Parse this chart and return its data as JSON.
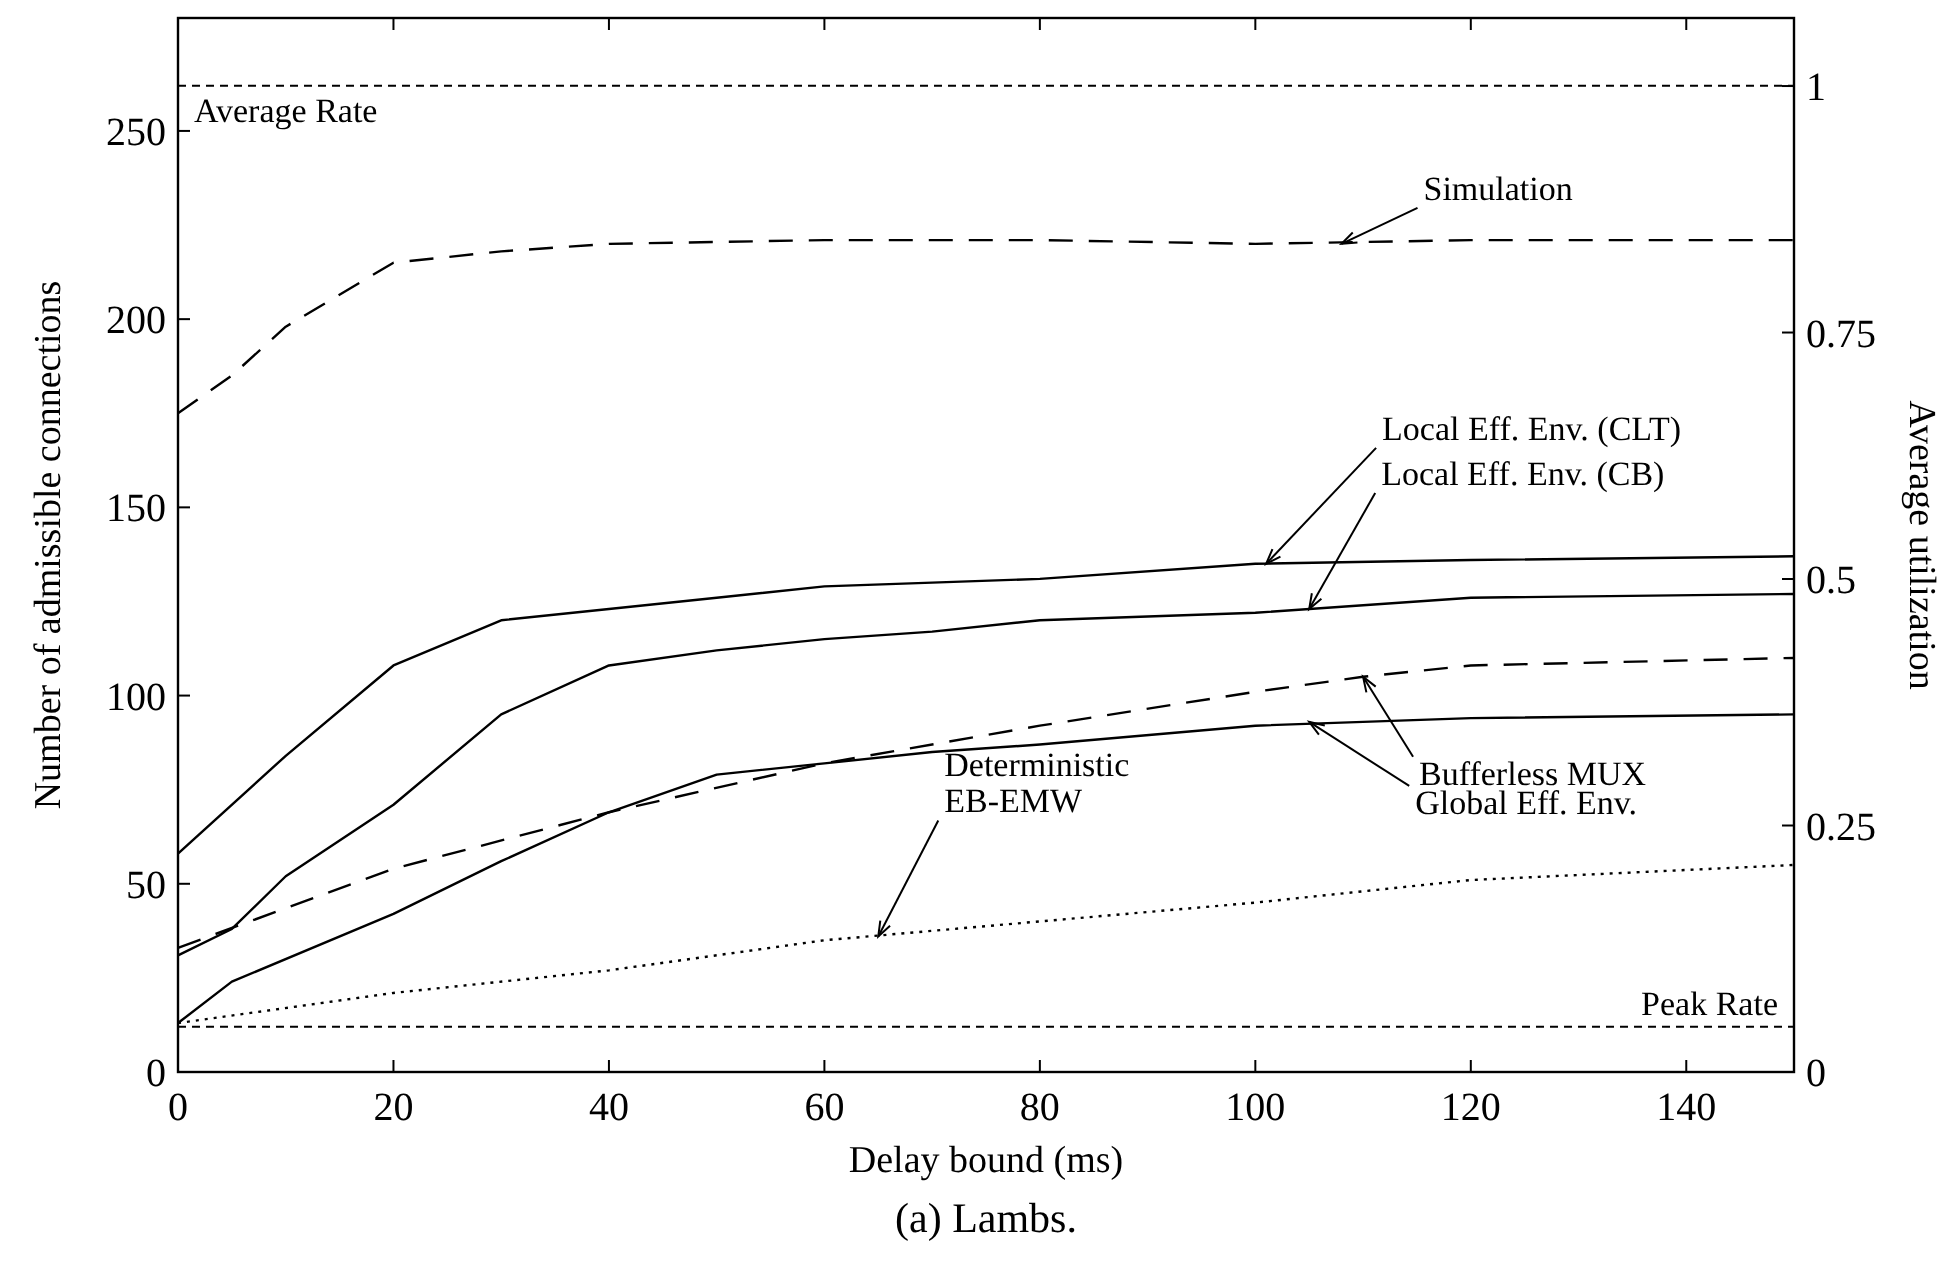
{
  "chart_data": {
    "type": "line",
    "xlabel": "Delay bound (ms)",
    "ylabel": "Number of admissible connections",
    "y2label": "Average utilization",
    "xlim": [
      0,
      150
    ],
    "xticks": [
      0,
      20,
      40,
      60,
      80,
      100,
      120,
      140
    ],
    "ylim": [
      0,
      280
    ],
    "yticks": [
      0,
      50,
      100,
      150,
      200,
      250
    ],
    "y2lim": [
      0,
      1.069
    ],
    "y2ticks": [
      0,
      0.25,
      0.5,
      0.75,
      1
    ],
    "grid": false,
    "series": [
      {
        "color": "#000000",
        "line_style": "dashed",
        "x": [
          0,
          5,
          10,
          20,
          30,
          40,
          60,
          80,
          100,
          120,
          150
        ],
        "values": [
          175,
          185,
          198,
          215,
          218,
          220,
          221,
          221,
          220,
          221,
          221
        ]
      },
      {
        "color": "#000000",
        "line_style": "solid",
        "x": [
          0,
          10,
          20,
          30,
          40,
          50,
          60,
          70,
          80,
          100,
          120,
          150
        ],
        "values": [
          58,
          84,
          108,
          120,
          123,
          126,
          129,
          130,
          131,
          135,
          136,
          137
        ]
      },
      {
        "color": "#000000",
        "line_style": "solid",
        "x": [
          0,
          5,
          10,
          20,
          30,
          40,
          50,
          60,
          70,
          80,
          100,
          120,
          150
        ],
        "values": [
          31,
          38,
          52,
          71,
          95,
          108,
          112,
          115,
          117,
          120,
          122,
          126,
          127
        ]
      },
      {
        "color": "#000000",
        "line_style": "dashed",
        "x": [
          0,
          20,
          40,
          60,
          80,
          100,
          110,
          120,
          150
        ],
        "values": [
          33,
          54,
          69,
          82,
          92,
          101,
          105,
          108,
          110
        ]
      },
      {
        "color": "#000000",
        "line_style": "solid",
        "x": [
          0,
          5,
          20,
          30,
          40,
          50,
          60,
          70,
          80,
          100,
          120,
          150
        ],
        "values": [
          13,
          24,
          42,
          56,
          69,
          79,
          82,
          85,
          87,
          92,
          94,
          95
        ]
      },
      {
        "color": "#000000",
        "line_style": "dotted",
        "x": [
          0,
          20,
          40,
          60,
          80,
          100,
          120,
          150
        ],
        "values": [
          13,
          21,
          27,
          35,
          40,
          45,
          51,
          55
        ]
      }
    ],
    "ref_lines": [
      {
        "axis": "y",
        "value": 262,
        "label": "Average Rate",
        "line_style": "dashed",
        "color": "#000000"
      },
      {
        "axis": "y",
        "value": 12,
        "label": "Peak Rate",
        "line_style": "dashed",
        "color": "#000000"
      }
    ],
    "annotations": [
      {
        "text": "Simulation",
        "x": 108,
        "y": 220
      },
      {
        "text": "Local Eff. Env. (CLT)",
        "x": 101,
        "y": 135
      },
      {
        "text": "Local Eff. Env. (CB)",
        "x": 105,
        "y": 123
      },
      {
        "text": "Bufferless MUX",
        "x": 110,
        "y": 105
      },
      {
        "text": "Global Eff. Env.",
        "x": 105,
        "y": 93
      },
      {
        "text": "Deterministic\nEB-EMW",
        "x": 65,
        "y": 36
      },
      "(a) Lambs."
    ]
  }
}
